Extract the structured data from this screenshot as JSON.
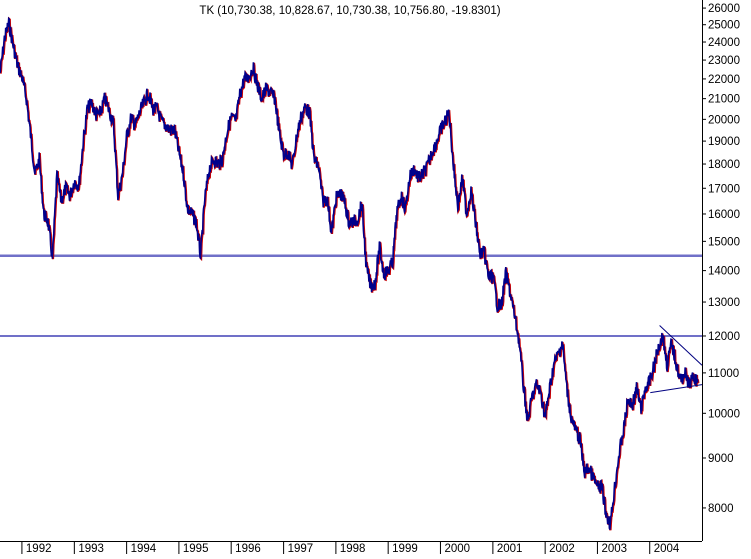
{
  "chart_data": {
    "type": "line",
    "title": "TK (10,730.38, 10,828.67, 10,730.38, 10,756.80, -19.8301)",
    "x_type": "date",
    "xlim": [
      "1991-08-01",
      "2004-12-31"
    ],
    "ylim": [
      7400,
      26500
    ],
    "y_scale": "log",
    "grid": false,
    "legend": "none",
    "x_ticks": [
      "1992",
      "1993",
      "1994",
      "1995",
      "1996",
      "1997",
      "1998",
      "1999",
      "2000",
      "2001",
      "2002",
      "2003",
      "2004"
    ],
    "y_ticks": [
      8000,
      9000,
      10000,
      11000,
      12000,
      13000,
      14000,
      15000,
      16000,
      17000,
      18000,
      19000,
      20000,
      21000,
      22000,
      23000,
      24000,
      25000,
      26000
    ],
    "colors": {
      "price_line": "#00008b",
      "down_bar": "#cc0000",
      "level_line": "#7070c8",
      "trend_line": "#000080",
      "frame": "#000000"
    },
    "series": [
      {
        "name": "TK",
        "points": [
          [
            "1991-08-01",
            22300
          ],
          [
            "1991-09-01",
            24200
          ],
          [
            "1991-10-01",
            25100
          ],
          [
            "1991-11-01",
            23800
          ],
          [
            "1991-12-01",
            22700
          ],
          [
            "1992-01-01",
            22100
          ],
          [
            "1992-02-01",
            21000
          ],
          [
            "1992-03-01",
            19300
          ],
          [
            "1992-04-01",
            17600
          ],
          [
            "1992-05-01",
            18200
          ],
          [
            "1992-06-01",
            16000
          ],
          [
            "1992-07-01",
            15700
          ],
          [
            "1992-08-01",
            14400
          ],
          [
            "1992-09-01",
            17500
          ],
          [
            "1992-10-01",
            16500
          ],
          [
            "1992-11-01",
            17000
          ],
          [
            "1992-12-01",
            16700
          ],
          [
            "1993-01-01",
            17300
          ],
          [
            "1993-02-01",
            17100
          ],
          [
            "1993-03-01",
            18800
          ],
          [
            "1993-04-01",
            20500
          ],
          [
            "1993-05-01",
            20800
          ],
          [
            "1993-06-01",
            20200
          ],
          [
            "1993-07-01",
            20300
          ],
          [
            "1993-08-01",
            21000
          ],
          [
            "1993-09-01",
            20400
          ],
          [
            "1993-10-01",
            19800
          ],
          [
            "1993-11-01",
            16700
          ],
          [
            "1993-12-01",
            17500
          ],
          [
            "1994-01-01",
            19200
          ],
          [
            "1994-02-01",
            20100
          ],
          [
            "1994-03-01",
            19700
          ],
          [
            "1994-04-01",
            20300
          ],
          [
            "1994-05-01",
            20800
          ],
          [
            "1994-06-01",
            21300
          ],
          [
            "1994-07-01",
            20500
          ],
          [
            "1994-08-01",
            20500
          ],
          [
            "1994-09-01",
            19900
          ],
          [
            "1994-10-01",
            19700
          ],
          [
            "1994-11-01",
            19500
          ],
          [
            "1994-12-01",
            19500
          ],
          [
            "1995-01-01",
            18500
          ],
          [
            "1995-02-01",
            17600
          ],
          [
            "1995-03-01",
            16200
          ],
          [
            "1995-04-01",
            16000
          ],
          [
            "1995-05-01",
            15700
          ],
          [
            "1995-06-01",
            14500
          ],
          [
            "1995-07-01",
            16600
          ],
          [
            "1995-08-01",
            17800
          ],
          [
            "1995-09-01",
            18200
          ],
          [
            "1995-10-01",
            18000
          ],
          [
            "1995-11-01",
            18200
          ],
          [
            "1995-12-01",
            19400
          ],
          [
            "1996-01-01",
            20100
          ],
          [
            "1996-02-01",
            19900
          ],
          [
            "1996-03-01",
            21200
          ],
          [
            "1996-04-01",
            22000
          ],
          [
            "1996-05-01",
            22100
          ],
          [
            "1996-06-01",
            22600
          ],
          [
            "1996-07-01",
            21700
          ],
          [
            "1996-08-01",
            21000
          ],
          [
            "1996-09-01",
            21500
          ],
          [
            "1996-10-01",
            21300
          ],
          [
            "1996-11-01",
            21000
          ],
          [
            "1996-12-01",
            19400
          ],
          [
            "1997-01-01",
            18400
          ],
          [
            "1997-02-01",
            18500
          ],
          [
            "1997-03-01",
            17900
          ],
          [
            "1997-04-01",
            19200
          ],
          [
            "1997-05-01",
            20100
          ],
          [
            "1997-06-01",
            20600
          ],
          [
            "1997-07-01",
            20300
          ],
          [
            "1997-08-01",
            18200
          ],
          [
            "1997-09-01",
            17900
          ],
          [
            "1997-10-01",
            16500
          ],
          [
            "1997-11-01",
            16600
          ],
          [
            "1997-12-01",
            15300
          ],
          [
            "1998-01-01",
            16600
          ],
          [
            "1998-02-01",
            16800
          ],
          [
            "1998-03-01",
            16500
          ],
          [
            "1998-04-01",
            15700
          ],
          [
            "1998-05-01",
            15700
          ],
          [
            "1998-06-01",
            15800
          ],
          [
            "1998-07-01",
            16400
          ],
          [
            "1998-08-01",
            14100
          ],
          [
            "1998-09-01",
            13500
          ],
          [
            "1998-10-01",
            13600
          ],
          [
            "1998-11-01",
            14800
          ],
          [
            "1998-12-01",
            13900
          ],
          [
            "1999-01-01",
            14000
          ],
          [
            "1999-02-01",
            14300
          ],
          [
            "1999-03-01",
            16000
          ],
          [
            "1999-04-01",
            16700
          ],
          [
            "1999-05-01",
            16200
          ],
          [
            "1999-06-01",
            17500
          ],
          [
            "1999-07-01",
            17800
          ],
          [
            "1999-08-01",
            17400
          ],
          [
            "1999-09-01",
            17600
          ],
          [
            "1999-10-01",
            17900
          ],
          [
            "1999-11-01",
            18500
          ],
          [
            "1999-12-01",
            18900
          ],
          [
            "2000-01-01",
            19500
          ],
          [
            "2000-02-01",
            19900
          ],
          [
            "2000-03-01",
            20300
          ],
          [
            "2000-04-01",
            17900
          ],
          [
            "2000-05-01",
            16300
          ],
          [
            "2000-06-01",
            17400
          ],
          [
            "2000-07-01",
            16000
          ],
          [
            "2000-08-01",
            16900
          ],
          [
            "2000-09-01",
            15700
          ],
          [
            "2000-10-01",
            14600
          ],
          [
            "2000-11-01",
            14600
          ],
          [
            "2000-12-01",
            13800
          ],
          [
            "2001-01-01",
            13800
          ],
          [
            "2001-02-01",
            12900
          ],
          [
            "2001-03-01",
            12900
          ],
          [
            "2001-04-01",
            13900
          ],
          [
            "2001-05-01",
            13300
          ],
          [
            "2001-06-01",
            12600
          ],
          [
            "2001-07-01",
            11900
          ],
          [
            "2001-08-01",
            10700
          ],
          [
            "2001-09-01",
            9800
          ],
          [
            "2001-10-01",
            10400
          ],
          [
            "2001-11-01",
            10700
          ],
          [
            "2001-12-01",
            10500
          ],
          [
            "2002-01-01",
            9900
          ],
          [
            "2002-02-01",
            10600
          ],
          [
            "2002-03-01",
            11200
          ],
          [
            "2002-04-01",
            11500
          ],
          [
            "2002-05-01",
            11800
          ],
          [
            "2002-06-01",
            10600
          ],
          [
            "2002-07-01",
            9900
          ],
          [
            "2002-08-01",
            9600
          ],
          [
            "2002-09-01",
            9400
          ],
          [
            "2002-10-01",
            8700
          ],
          [
            "2002-11-01",
            8800
          ],
          [
            "2002-12-01",
            8600
          ],
          [
            "2003-01-01",
            8400
          ],
          [
            "2003-02-01",
            8400
          ],
          [
            "2003-03-01",
            7900
          ],
          [
            "2003-04-01",
            7700
          ],
          [
            "2003-05-01",
            8400
          ],
          [
            "2003-06-01",
            9100
          ],
          [
            "2003-07-01",
            9600
          ],
          [
            "2003-08-01",
            10300
          ],
          [
            "2003-09-01",
            10200
          ],
          [
            "2003-10-01",
            10600
          ],
          [
            "2003-11-01",
            10100
          ],
          [
            "2003-12-01",
            10600
          ],
          [
            "2004-01-01",
            10800
          ],
          [
            "2004-02-01",
            11200
          ],
          [
            "2004-03-01",
            11700
          ],
          [
            "2004-04-01",
            12000
          ],
          [
            "2004-05-01",
            11200
          ],
          [
            "2004-06-01",
            11800
          ],
          [
            "2004-07-01",
            11300
          ],
          [
            "2004-08-01",
            10800
          ],
          [
            "2004-09-01",
            11000
          ],
          [
            "2004-10-01",
            10700
          ],
          [
            "2004-11-01",
            10900
          ],
          [
            "2004-12-01",
            10757
          ]
        ]
      }
    ],
    "horizontal_lines": [
      14500,
      12000
    ],
    "trend_lines": [
      {
        "from": [
          "2004-03-10",
          12300
        ],
        "to": [
          "2004-12-31",
          11200
        ]
      },
      {
        "from": [
          "2004-01-05",
          10500
        ],
        "to": [
          "2004-12-31",
          10700
        ]
      }
    ]
  }
}
